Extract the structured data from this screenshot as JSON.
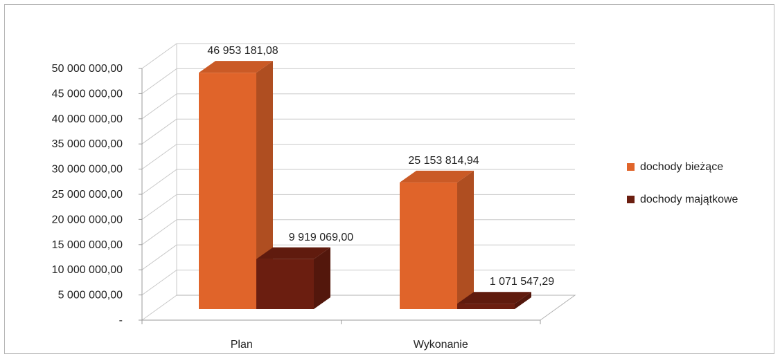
{
  "chart_data": {
    "type": "bar",
    "categories": [
      "Plan",
      "Wykonanie"
    ],
    "series": [
      {
        "name": "dochody bieżące",
        "values": [
          46953181.08,
          25153814.94
        ],
        "labels": [
          "46 953 181,08",
          "25 153 814,94"
        ],
        "color": "#e0642a"
      },
      {
        "name": "dochody majątkowe",
        "values": [
          9919069.0,
          1071547.29
        ],
        "labels": [
          "9 919 069,00",
          "1 071 547,29"
        ],
        "color": "#6b1e10"
      }
    ],
    "y_ticks": [
      "-",
      "5 000 000,00",
      "10 000 000,00",
      "15 000 000,00",
      "20 000 000,00",
      "25 000 000,00",
      "30 000 000,00",
      "35 000 000,00",
      "40 000 000,00",
      "45 000 000,00",
      "50 000 000,00"
    ],
    "ylim": [
      0,
      50000000
    ],
    "grid": true,
    "legend_position": "right",
    "style": "3d-clustered-column"
  }
}
